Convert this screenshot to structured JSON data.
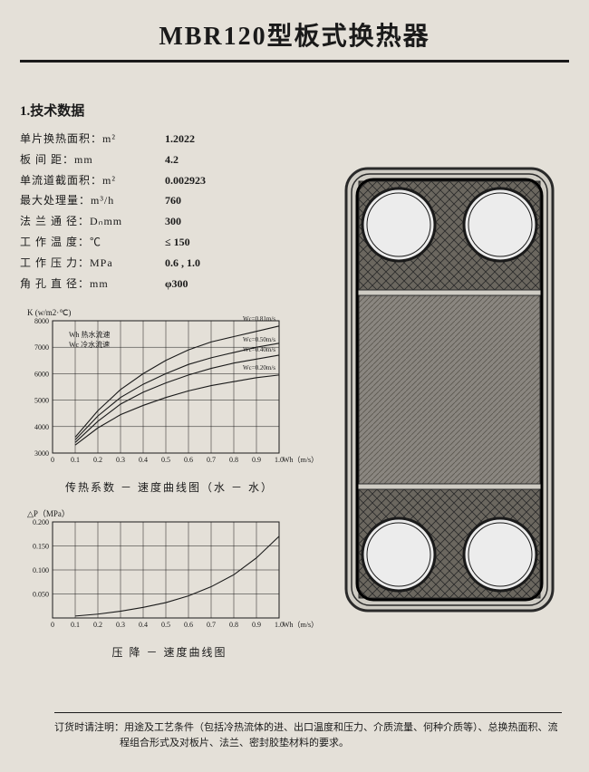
{
  "title": "MBR120型板式换热器",
  "section_heading": "1.技术数据",
  "specs": [
    {
      "label": "单片换热面积：m²",
      "value": "1.2022"
    },
    {
      "label": "板  间  距：mm",
      "value": "4.2"
    },
    {
      "label": "单流道截面积：m²",
      "value": "0.002923"
    },
    {
      "label": "最大处理量：m³/h",
      "value": "760"
    },
    {
      "label": "法 兰 通 径：Dₙmm",
      "value": "300"
    },
    {
      "label": "工 作 温 度：℃",
      "value": "≤ 150"
    },
    {
      "label": "工 作 压 力：MPa",
      "value": "0.6 , 1.0"
    },
    {
      "label": "角 孔 直 径：mm",
      "value": "φ300"
    }
  ],
  "chart1": {
    "type": "line",
    "title_y": "K (w/m2·℃)",
    "xlabel": "Wh（m/s）",
    "xlim": [
      0,
      1.0
    ],
    "ylim": [
      3000,
      8000
    ],
    "xticks": [
      0,
      0.1,
      0.2,
      0.3,
      0.4,
      0.5,
      0.6,
      0.7,
      0.8,
      0.9,
      1.0
    ],
    "yticks": [
      3000,
      4000,
      5000,
      6000,
      7000,
      8000
    ],
    "legend": [
      "Wh 热水流速",
      "Wc 冷水流速"
    ],
    "series": [
      {
        "label": "Wc=0.81m/s",
        "points": [
          [
            0.1,
            3600
          ],
          [
            0.2,
            4600
          ],
          [
            0.3,
            5400
          ],
          [
            0.4,
            6000
          ],
          [
            0.5,
            6500
          ],
          [
            0.6,
            6900
          ],
          [
            0.7,
            7200
          ],
          [
            0.8,
            7400
          ],
          [
            0.9,
            7600
          ],
          [
            1.0,
            7800
          ]
        ]
      },
      {
        "label": "Wc=0.50m/s",
        "points": [
          [
            0.1,
            3500
          ],
          [
            0.2,
            4400
          ],
          [
            0.3,
            5100
          ],
          [
            0.4,
            5600
          ],
          [
            0.5,
            6000
          ],
          [
            0.6,
            6350
          ],
          [
            0.7,
            6600
          ],
          [
            0.8,
            6800
          ],
          [
            0.9,
            7000
          ],
          [
            1.0,
            7150
          ]
        ]
      },
      {
        "label": "Wc=0.40m/s",
        "points": [
          [
            0.1,
            3400
          ],
          [
            0.2,
            4200
          ],
          [
            0.3,
            4850
          ],
          [
            0.4,
            5300
          ],
          [
            0.5,
            5650
          ],
          [
            0.6,
            5950
          ],
          [
            0.7,
            6200
          ],
          [
            0.8,
            6400
          ],
          [
            0.9,
            6550
          ],
          [
            1.0,
            6700
          ]
        ]
      },
      {
        "label": "Wc=0.20m/s",
        "points": [
          [
            0.1,
            3300
          ],
          [
            0.2,
            3950
          ],
          [
            0.3,
            4450
          ],
          [
            0.4,
            4800
          ],
          [
            0.5,
            5100
          ],
          [
            0.6,
            5350
          ],
          [
            0.7,
            5550
          ],
          [
            0.8,
            5700
          ],
          [
            0.9,
            5850
          ],
          [
            1.0,
            5950
          ]
        ]
      }
    ],
    "line_color": "#1a1a1a",
    "grid_color": "#1a1a1a",
    "caption": "传热系数 － 速度曲线图（水 － 水）"
  },
  "chart2": {
    "type": "line",
    "title_y": "△P（MPa）",
    "xlabel": "Wh（m/s）",
    "xlim": [
      0,
      1.0
    ],
    "ylim": [
      0,
      0.2
    ],
    "xticks": [
      0,
      0.1,
      0.2,
      0.3,
      0.4,
      0.5,
      0.6,
      0.7,
      0.8,
      0.9,
      1.0
    ],
    "yticks": [
      0.05,
      0.1,
      0.15,
      0.2
    ],
    "series": [
      {
        "label": "",
        "points": [
          [
            0.1,
            0.004
          ],
          [
            0.2,
            0.008
          ],
          [
            0.3,
            0.014
          ],
          [
            0.4,
            0.022
          ],
          [
            0.5,
            0.032
          ],
          [
            0.6,
            0.046
          ],
          [
            0.7,
            0.065
          ],
          [
            0.8,
            0.09
          ],
          [
            0.9,
            0.125
          ],
          [
            1.0,
            0.17
          ]
        ]
      }
    ],
    "line_color": "#1a1a1a",
    "grid_color": "#1a1a1a",
    "caption": "压 降 － 速度曲线图"
  },
  "footer": {
    "prefix": "订货时请注明：",
    "line1": "用途及工艺条件（包括冷热流体的进、出口温度和压力、介质流量、何种介质等）、总换热面积、流",
    "line2": "程组合形式及对板片、法兰、密封胶垫材料的要求。"
  },
  "plate": {
    "outer_stroke": "#2a2a2a",
    "fill_mid": "#8a8680",
    "fill_pattern": "#6b675f",
    "hole_stroke": "#1a1a1a",
    "hole_fill": "#ececec"
  }
}
